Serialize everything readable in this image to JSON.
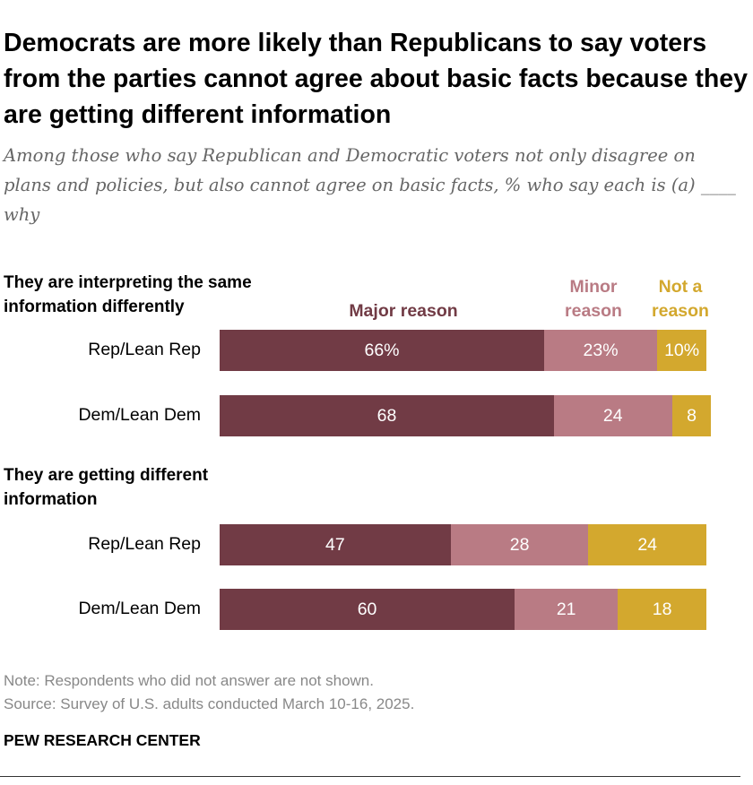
{
  "title": "Democrats are more likely than Republicans to say voters from the parties cannot agree about basic facts because they are getting different information",
  "subtitle": "Among those who say Republican and Democratic voters not only disagree on plans and policies, but also cannot agree on basic facts, % who say each is (a) ____ why",
  "legend": {
    "major": "Major reason",
    "minor_1": "Minor",
    "minor_2": "reason",
    "not_1": "Not a",
    "not_2": "reason"
  },
  "colors": {
    "major": "#713B45",
    "minor": "#B97B84",
    "not": "#D3A82E"
  },
  "chart_data": {
    "type": "bar",
    "orientation": "horizontal",
    "stacked": true,
    "series": [
      {
        "name": "Major reason"
      },
      {
        "name": "Minor reason"
      },
      {
        "name": "Not a reason"
      }
    ],
    "groups": [
      {
        "title": "They are interpreting the same information differently",
        "rows": [
          {
            "label": "Rep/Lean Rep",
            "values": [
              66,
              23,
              10
            ],
            "labels": [
              "66%",
              "23%",
              "10%"
            ]
          },
          {
            "label": "Dem/Lean Dem",
            "values": [
              68,
              24,
              8
            ],
            "labels": [
              "68",
              "24",
              "8"
            ]
          }
        ]
      },
      {
        "title": "They are getting different information",
        "rows": [
          {
            "label": "Rep/Lean Rep",
            "values": [
              47,
              28,
              24
            ],
            "labels": [
              "47",
              "28",
              "24"
            ]
          },
          {
            "label": "Dem/Lean Dem",
            "values": [
              60,
              21,
              18
            ],
            "labels": [
              "60",
              "21",
              "18"
            ]
          }
        ]
      }
    ]
  },
  "note": "Note: Respondents who did not answer are not shown.",
  "source": "Source: Survey of U.S. adults conducted March 10-16, 2025.",
  "org": "PEW RESEARCH CENTER"
}
